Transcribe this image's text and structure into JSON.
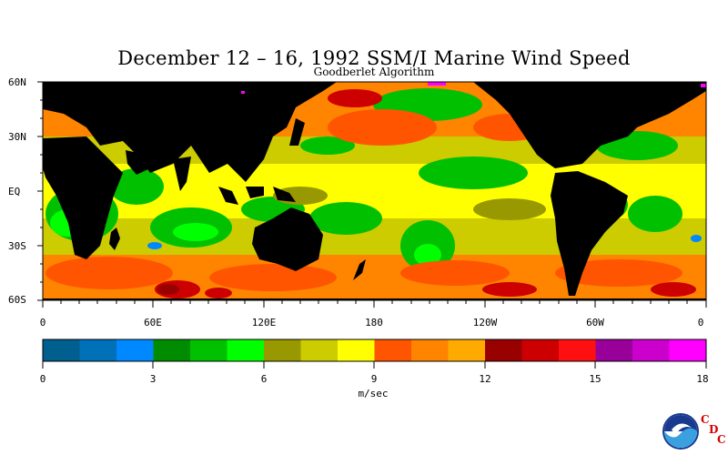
{
  "title": "December 12 – 16, 1992 SSM/I Marine Wind Speed",
  "subtitle": "Goodberlet Algorithm",
  "map": {
    "lat_labels": [
      "60N",
      "30N",
      "EQ",
      "30S",
      "60S"
    ],
    "lon_labels": [
      "0",
      "60E",
      "120E",
      "180",
      "120W",
      "60W",
      "0"
    ],
    "land_color": "#000000"
  },
  "colorbar": {
    "tick_labels": [
      "0",
      "3",
      "6",
      "9",
      "12",
      "15",
      "18"
    ],
    "units": "m/sec",
    "colors": [
      "#005f8e",
      "#0070b8",
      "#0088ff",
      "#008c00",
      "#00c000",
      "#00ff00",
      "#989800",
      "#cccc00",
      "#ffff00",
      "#ff5500",
      "#ff8400",
      "#ffaa00",
      "#990000",
      "#cc0000",
      "#ff1010",
      "#990099",
      "#cc00cc",
      "#ff00ff"
    ]
  },
  "logo": {
    "agency": "NOAA",
    "cdc_letters": [
      "C",
      "D",
      "C"
    ]
  }
}
